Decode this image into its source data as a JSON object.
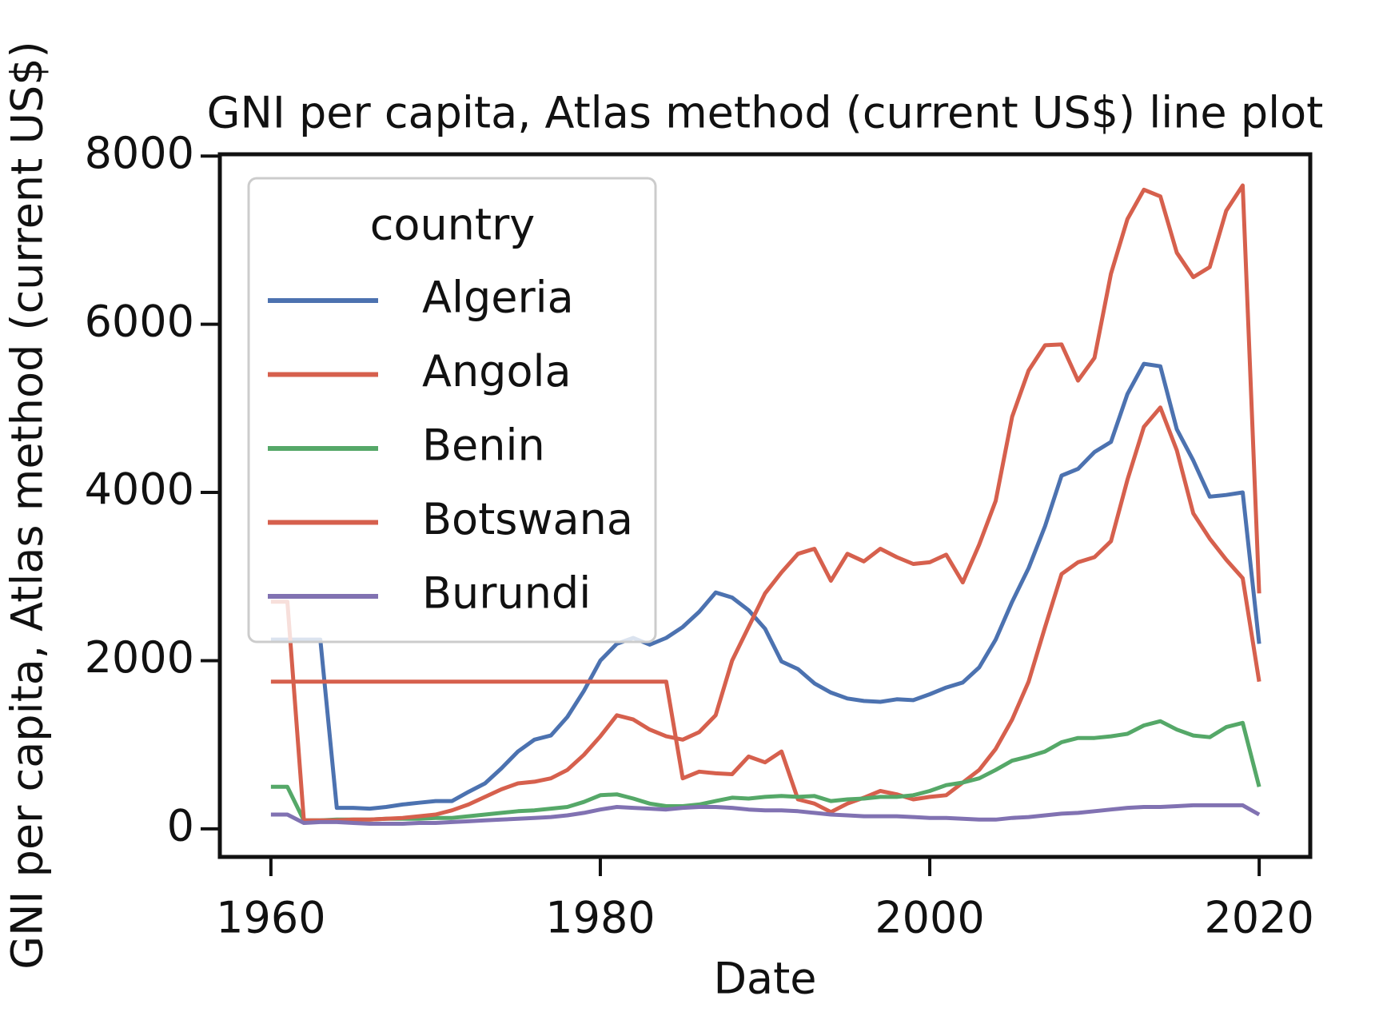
{
  "chart_data": {
    "type": "line",
    "title": "GNI per capita, Atlas method (current US$) line plot",
    "xlabel": "Date",
    "ylabel": "GNI per capita, Atlas method (current US$)",
    "legend_title": "country",
    "legend": "upper left",
    "x": [
      1960,
      1961,
      1962,
      1963,
      1964,
      1965,
      1966,
      1967,
      1968,
      1969,
      1970,
      1971,
      1972,
      1973,
      1974,
      1975,
      1976,
      1977,
      1978,
      1979,
      1980,
      1981,
      1982,
      1983,
      1984,
      1985,
      1986,
      1987,
      1988,
      1989,
      1990,
      1991,
      1992,
      1993,
      1994,
      1995,
      1996,
      1997,
      1998,
      1999,
      2000,
      2001,
      2002,
      2003,
      2004,
      2005,
      2006,
      2007,
      2008,
      2009,
      2010,
      2011,
      2012,
      2013,
      2014,
      2015,
      2016,
      2017,
      2018,
      2019,
      2020
    ],
    "xlim": [
      1956.9,
      2023.1
    ],
    "xticks": [
      1960,
      1980,
      2000,
      2020
    ],
    "ylim": [
      -334,
      8021
    ],
    "yticks": [
      0,
      2000,
      4000,
      6000,
      8000
    ],
    "series": [
      {
        "name": "Algeria",
        "color": "#4c72b0",
        "values": [
          2250,
          2250,
          2250,
          2250,
          250,
          250,
          240,
          260,
          290,
          310,
          330,
          330,
          440,
          540,
          720,
          920,
          1060,
          1110,
          1330,
          1640,
          2000,
          2200,
          2270,
          2190,
          2270,
          2400,
          2580,
          2810,
          2750,
          2600,
          2380,
          1990,
          1900,
          1730,
          1620,
          1550,
          1520,
          1510,
          1540,
          1530,
          1600,
          1680,
          1740,
          1920,
          2250,
          2700,
          3100,
          3600,
          4200,
          4280,
          4480,
          4600,
          5170,
          5530,
          5500,
          4750,
          4380,
          3950,
          3970,
          4000,
          2200
        ]
      },
      {
        "name": "Angola",
        "color": "#d6604d",
        "values": [
          1750,
          1750,
          1750,
          1750,
          1750,
          1750,
          1750,
          1750,
          1750,
          1750,
          1750,
          1750,
          1750,
          1750,
          1750,
          1750,
          1750,
          1750,
          1750,
          1750,
          1750,
          1750,
          1750,
          1750,
          1750,
          600,
          680,
          660,
          650,
          860,
          790,
          920,
          350,
          300,
          200,
          300,
          370,
          450,
          410,
          350,
          380,
          400,
          550,
          700,
          950,
          1300,
          1750,
          2400,
          3030,
          3170,
          3230,
          3420,
          4150,
          4780,
          5010,
          4500,
          3750,
          3450,
          3200,
          2980,
          1750
        ]
      },
      {
        "name": "Benin",
        "color": "#55a868",
        "values": [
          500,
          500,
          100,
          100,
          110,
          110,
          110,
          120,
          120,
          120,
          130,
          130,
          150,
          170,
          190,
          210,
          220,
          240,
          260,
          320,
          400,
          410,
          360,
          300,
          270,
          270,
          290,
          330,
          370,
          360,
          380,
          390,
          380,
          390,
          330,
          350,
          360,
          380,
          380,
          400,
          450,
          520,
          550,
          600,
          700,
          810,
          860,
          920,
          1030,
          1080,
          1080,
          1100,
          1130,
          1230,
          1280,
          1180,
          1110,
          1090,
          1210,
          1260,
          500
        ]
      },
      {
        "name": "Botswana",
        "color": "#d6604d",
        "values": [
          2700,
          2700,
          100,
          100,
          100,
          110,
          110,
          120,
          130,
          150,
          170,
          220,
          290,
          380,
          470,
          540,
          560,
          600,
          700,
          880,
          1100,
          1350,
          1300,
          1180,
          1100,
          1060,
          1150,
          1350,
          2000,
          2400,
          2800,
          3050,
          3270,
          3330,
          2950,
          3270,
          3180,
          3330,
          3230,
          3150,
          3170,
          3260,
          2930,
          3380,
          3900,
          4900,
          5450,
          5750,
          5760,
          5330,
          5600,
          6600,
          7250,
          7600,
          7520,
          6850,
          6560,
          6680,
          7350,
          7650,
          2800
        ]
      },
      {
        "name": "Burundi",
        "color": "#8172b2",
        "values": [
          170,
          170,
          70,
          80,
          80,
          70,
          60,
          60,
          60,
          70,
          70,
          80,
          90,
          100,
          110,
          120,
          130,
          140,
          160,
          190,
          230,
          260,
          250,
          240,
          230,
          250,
          260,
          260,
          250,
          230,
          220,
          220,
          210,
          190,
          170,
          160,
          150,
          150,
          150,
          140,
          130,
          130,
          120,
          110,
          110,
          130,
          140,
          160,
          180,
          190,
          210,
          230,
          250,
          260,
          260,
          270,
          280,
          280,
          280,
          280,
          170
        ]
      }
    ]
  }
}
